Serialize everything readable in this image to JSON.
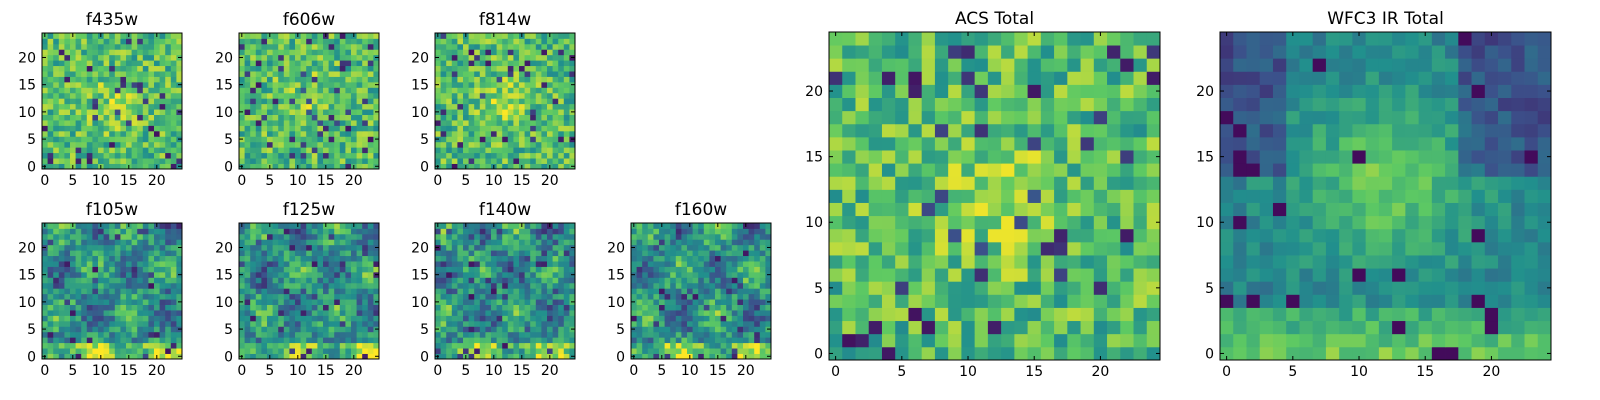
{
  "chart_data": [
    {
      "type": "heatmap",
      "title": "f435w",
      "x_ticks": [
        0,
        5,
        10,
        15,
        20
      ],
      "y_ticks": [
        0,
        5,
        10,
        15,
        20
      ],
      "extent": [
        0,
        25
      ],
      "grid": false,
      "colormap": "viridis",
      "seed": 11,
      "pattern": "noise"
    },
    {
      "type": "heatmap",
      "title": "f606w",
      "x_ticks": [
        0,
        5,
        10,
        15,
        20
      ],
      "y_ticks": [
        0,
        5,
        10,
        15,
        20
      ],
      "extent": [
        0,
        25
      ],
      "grid": false,
      "colormap": "viridis",
      "seed": 23,
      "pattern": "noise"
    },
    {
      "type": "heatmap",
      "title": "f814w",
      "x_ticks": [
        0,
        5,
        10,
        15,
        20
      ],
      "y_ticks": [
        0,
        5,
        10,
        15,
        20
      ],
      "extent": [
        0,
        25
      ],
      "grid": false,
      "colormap": "viridis",
      "seed": 37,
      "pattern": "noise"
    },
    {
      "type": "heatmap",
      "title": "f105w",
      "x_ticks": [
        0,
        5,
        10,
        15,
        20
      ],
      "y_ticks": [
        0,
        5,
        10,
        15,
        20
      ],
      "extent": [
        0,
        25
      ],
      "grid": false,
      "colormap": "viridis",
      "seed": 41,
      "pattern": "smooth"
    },
    {
      "type": "heatmap",
      "title": "f125w",
      "x_ticks": [
        0,
        5,
        10,
        15,
        20
      ],
      "y_ticks": [
        0,
        5,
        10,
        15,
        20
      ],
      "extent": [
        0,
        25
      ],
      "grid": false,
      "colormap": "viridis",
      "seed": 53,
      "pattern": "smooth"
    },
    {
      "type": "heatmap",
      "title": "f140w",
      "x_ticks": [
        0,
        5,
        10,
        15,
        20
      ],
      "y_ticks": [
        0,
        5,
        10,
        15,
        20
      ],
      "extent": [
        0,
        25
      ],
      "grid": false,
      "colormap": "viridis",
      "seed": 67,
      "pattern": "smooth"
    },
    {
      "type": "heatmap",
      "title": "f160w",
      "x_ticks": [
        0,
        5,
        10,
        15,
        20
      ],
      "y_ticks": [
        0,
        5,
        10,
        15,
        20
      ],
      "extent": [
        0,
        25
      ],
      "grid": false,
      "colormap": "viridis",
      "seed": 79,
      "pattern": "smooth"
    },
    {
      "type": "heatmap",
      "title": "ACS Total",
      "x_ticks": [
        0,
        5,
        10,
        15,
        20
      ],
      "y_ticks": [
        0,
        5,
        10,
        15,
        20
      ],
      "extent": [
        0,
        25
      ],
      "grid": false,
      "colormap": "viridis",
      "seed": 97,
      "pattern": "noise"
    },
    {
      "type": "heatmap",
      "title": "WFC3 IR Total",
      "x_ticks": [
        0,
        5,
        10,
        15,
        20
      ],
      "y_ticks": [
        0,
        5,
        10,
        15,
        20
      ],
      "extent": [
        0,
        25
      ],
      "grid": false,
      "colormap": "viridis",
      "seed": 113,
      "pattern": "ir"
    }
  ],
  "colors": {
    "viridis": [
      "#440154",
      "#3b528b",
      "#21908d",
      "#5dc963",
      "#fde725"
    ],
    "axis": "#000000"
  }
}
